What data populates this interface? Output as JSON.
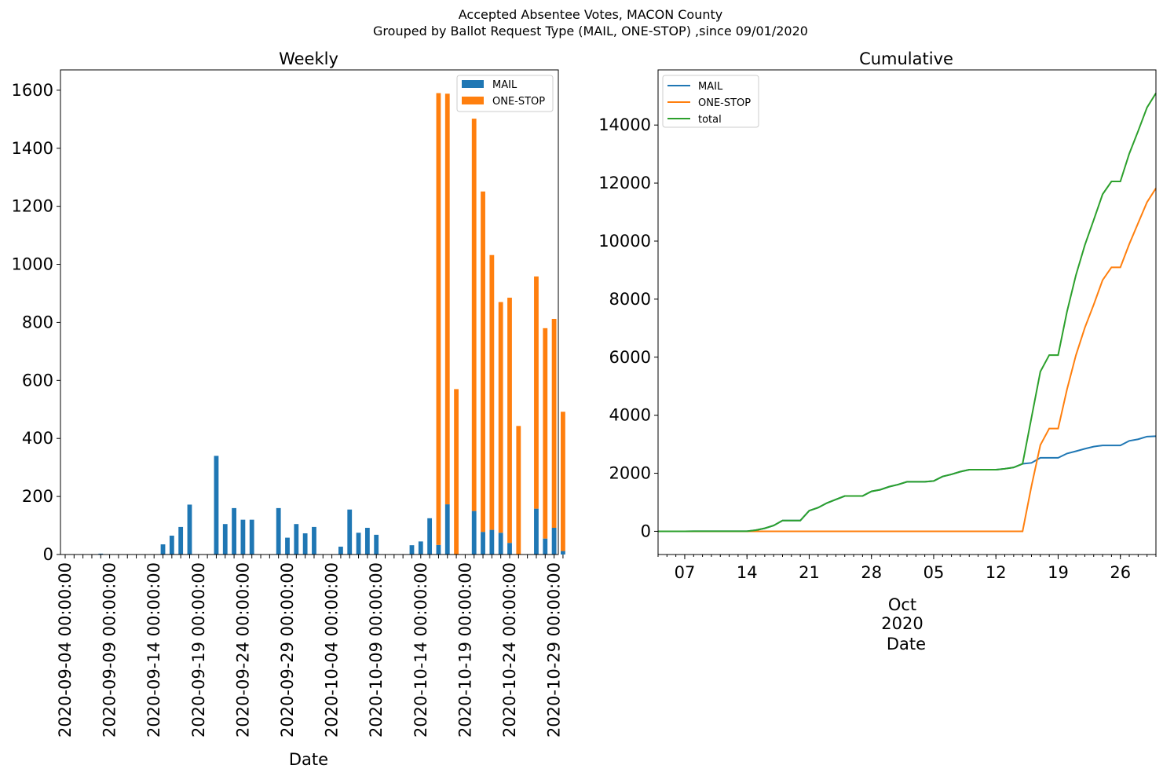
{
  "figure": {
    "title_line1": "Accepted Absentee Votes, MACON County",
    "title_line2": "Grouped by Ballot Request Type (MAIL, ONE-STOP) ,since 09/01/2020"
  },
  "colors": {
    "mail": "#1f77b4",
    "onestop": "#ff7f0e",
    "total": "#2ca02c"
  },
  "chart_data": [
    {
      "type": "bar",
      "stacked": true,
      "title": "Weekly",
      "xlabel": "Date",
      "ylabel": "",
      "ylim": [
        0,
        1670
      ],
      "yticks": [
        "0",
        "200",
        "400",
        "600",
        "800",
        "1000",
        "1200",
        "1400",
        "1600"
      ],
      "x_tick_labels": [
        "2020-09-04 00:00:00",
        "2020-09-09 00:00:00",
        "2020-09-14 00:00:00",
        "2020-09-19 00:00:00",
        "2020-09-24 00:00:00",
        "2020-09-29 00:00:00",
        "2020-10-04 00:00:00",
        "2020-10-09 00:00:00",
        "2020-10-14 00:00:00",
        "2020-10-19 00:00:00",
        "2020-10-24 00:00:00",
        "2020-10-29 00:00:00"
      ],
      "categories": [
        "2020-09-04",
        "2020-09-05",
        "2020-09-06",
        "2020-09-07",
        "2020-09-08",
        "2020-09-09",
        "2020-09-10",
        "2020-09-11",
        "2020-09-12",
        "2020-09-13",
        "2020-09-14",
        "2020-09-15",
        "2020-09-16",
        "2020-09-17",
        "2020-09-18",
        "2020-09-19",
        "2020-09-20",
        "2020-09-21",
        "2020-09-22",
        "2020-09-23",
        "2020-09-24",
        "2020-09-25",
        "2020-09-26",
        "2020-09-27",
        "2020-09-28",
        "2020-09-29",
        "2020-09-30",
        "2020-10-01",
        "2020-10-02",
        "2020-10-03",
        "2020-10-04",
        "2020-10-05",
        "2020-10-06",
        "2020-10-07",
        "2020-10-08",
        "2020-10-09",
        "2020-10-10",
        "2020-10-11",
        "2020-10-12",
        "2020-10-13",
        "2020-10-14",
        "2020-10-15",
        "2020-10-16",
        "2020-10-17",
        "2020-10-18",
        "2020-10-19",
        "2020-10-20",
        "2020-10-21",
        "2020-10-22",
        "2020-10-23",
        "2020-10-24",
        "2020-10-25",
        "2020-10-26",
        "2020-10-27",
        "2020-10-28",
        "2020-10-29",
        "2020-10-30"
      ],
      "series": [
        {
          "name": "MAIL",
          "values": [
            0,
            0,
            0,
            0,
            3,
            0,
            0,
            0,
            0,
            0,
            0,
            35,
            65,
            95,
            172,
            0,
            0,
            340,
            105,
            160,
            120,
            120,
            0,
            0,
            160,
            58,
            105,
            73,
            95,
            0,
            0,
            27,
            155,
            75,
            92,
            68,
            0,
            0,
            0,
            32,
            45,
            125,
            33,
            173,
            0,
            0,
            150,
            78,
            85,
            75,
            40,
            0,
            0,
            158,
            55,
            92,
            12
          ]
        },
        {
          "name": "ONE-STOP",
          "values": [
            0,
            0,
            0,
            0,
            0,
            0,
            0,
            0,
            0,
            0,
            0,
            0,
            0,
            0,
            0,
            0,
            0,
            0,
            0,
            0,
            0,
            0,
            0,
            0,
            0,
            0,
            0,
            0,
            0,
            0,
            0,
            0,
            0,
            0,
            0,
            0,
            0,
            0,
            0,
            0,
            0,
            0,
            1557,
            1415,
            570,
            0,
            1352,
            1173,
            947,
            795,
            845,
            443,
            0,
            800,
            725,
            720,
            480
          ]
        }
      ],
      "legend": [
        "MAIL",
        "ONE-STOP"
      ],
      "legend_loc": "upper right"
    },
    {
      "type": "line",
      "title": "Cumulative",
      "xlabel": "Date",
      "ylim": [
        -800,
        15900
      ],
      "yticks": [
        "0",
        "2000",
        "4000",
        "6000",
        "8000",
        "10000",
        "12000",
        "14000"
      ],
      "x_major_ticks": [
        "07",
        "14",
        "21",
        "28",
        "05",
        "12",
        "19",
        "26"
      ],
      "x_month_label": "Oct",
      "x_year_label": "2020",
      "x": [
        "2020-09-04",
        "2020-09-05",
        "2020-09-06",
        "2020-09-07",
        "2020-09-08",
        "2020-09-09",
        "2020-09-10",
        "2020-09-11",
        "2020-09-12",
        "2020-09-13",
        "2020-09-14",
        "2020-09-15",
        "2020-09-16",
        "2020-09-17",
        "2020-09-18",
        "2020-09-19",
        "2020-09-20",
        "2020-09-21",
        "2020-09-22",
        "2020-09-23",
        "2020-09-24",
        "2020-09-25",
        "2020-09-26",
        "2020-09-27",
        "2020-09-28",
        "2020-09-29",
        "2020-09-30",
        "2020-10-01",
        "2020-10-02",
        "2020-10-03",
        "2020-10-04",
        "2020-10-05",
        "2020-10-06",
        "2020-10-07",
        "2020-10-08",
        "2020-10-09",
        "2020-10-10",
        "2020-10-11",
        "2020-10-12",
        "2020-10-13",
        "2020-10-14",
        "2020-10-15",
        "2020-10-16",
        "2020-10-17",
        "2020-10-18",
        "2020-10-19",
        "2020-10-20",
        "2020-10-21",
        "2020-10-22",
        "2020-10-23",
        "2020-10-24",
        "2020-10-25",
        "2020-10-26",
        "2020-10-27",
        "2020-10-28",
        "2020-10-29",
        "2020-10-30"
      ],
      "series": [
        {
          "name": "MAIL",
          "values": [
            0,
            0,
            0,
            0,
            3,
            3,
            3,
            3,
            3,
            3,
            3,
            38,
            103,
            198,
            370,
            370,
            370,
            710,
            815,
            975,
            1095,
            1215,
            1215,
            1215,
            1375,
            1433,
            1538,
            1611,
            1706,
            1706,
            1706,
            1733,
            1888,
            1963,
            2055,
            2123,
            2123,
            2123,
            2123,
            2155,
            2200,
            2325,
            2358,
            2531,
            2531,
            2531,
            2681,
            2759,
            2844,
            2919,
            2959,
            2959,
            2959,
            3117,
            3172,
            3264,
            3276
          ]
        },
        {
          "name": "ONE-STOP",
          "values": [
            0,
            0,
            0,
            0,
            0,
            0,
            0,
            0,
            0,
            0,
            0,
            0,
            0,
            0,
            0,
            0,
            0,
            0,
            0,
            0,
            0,
            0,
            0,
            0,
            0,
            0,
            0,
            0,
            0,
            0,
            0,
            0,
            0,
            0,
            0,
            0,
            0,
            0,
            0,
            0,
            0,
            0,
            1557,
            2972,
            3542,
            3542,
            4894,
            6067,
            7014,
            7809,
            8654,
            9097,
            9097,
            9897,
            10622,
            11342,
            11822
          ]
        },
        {
          "name": "total",
          "values": [
            0,
            0,
            0,
            0,
            3,
            3,
            3,
            3,
            3,
            3,
            3,
            38,
            103,
            198,
            370,
            370,
            370,
            710,
            815,
            975,
            1095,
            1215,
            1215,
            1215,
            1375,
            1433,
            1538,
            1611,
            1706,
            1706,
            1706,
            1733,
            1888,
            1963,
            2055,
            2123,
            2123,
            2123,
            2123,
            2155,
            2200,
            2325,
            3915,
            5503,
            6073,
            6073,
            7575,
            8826,
            9858,
            10728,
            11613,
            12056,
            12056,
            13014,
            13794,
            14606,
            15098
          ]
        }
      ],
      "legend": [
        "MAIL",
        "ONE-STOP",
        "total"
      ],
      "legend_loc": "upper left"
    }
  ]
}
